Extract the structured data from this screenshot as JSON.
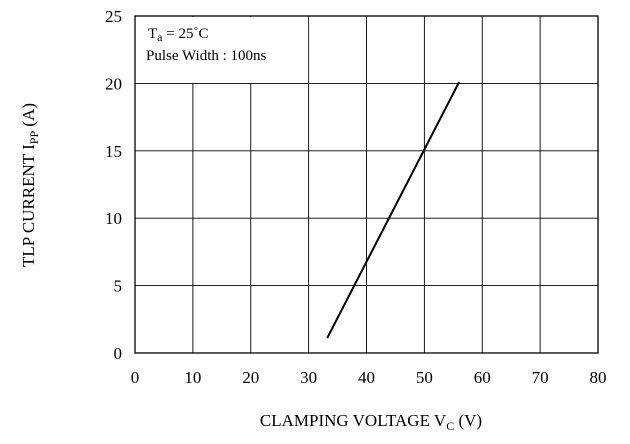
{
  "chart_data": {
    "type": "line",
    "xlabel": {
      "main": "CLAMPING VOLTAGE V",
      "sub": "C",
      "tail": " (V)"
    },
    "ylabel": {
      "main": "TLP CURRENT I",
      "sub": "PP",
      "tail": " (A)"
    },
    "xlim": [
      0,
      80
    ],
    "ylim": [
      0,
      25
    ],
    "xticks": [
      0,
      10,
      20,
      30,
      40,
      50,
      60,
      70,
      80
    ],
    "yticks": [
      0,
      5,
      10,
      15,
      20,
      25
    ],
    "grid": true,
    "annotations": {
      "temperature": {
        "main": "T",
        "sub": "a",
        "tail": " = 25˚C"
      },
      "pulse_width": "Pulse Width : 100ns"
    },
    "series": [
      {
        "x": [
          33.2,
          56.0
        ],
        "y": [
          1.1,
          20.1
        ],
        "color": "#000000"
      }
    ]
  }
}
